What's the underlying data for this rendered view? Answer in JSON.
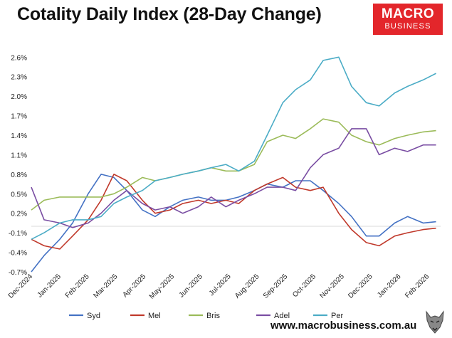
{
  "title": "Cotality Daily Index (28-Day Change)",
  "logo": {
    "top": "MACRO",
    "bottom": "BUSINESS",
    "color": "#e3262b"
  },
  "footer_url": "www.macrobusiness.com.au",
  "chart_data": {
    "type": "line",
    "title": "Cotality Daily Index (28-Day Change)",
    "y_ticks": [
      "-0.7%",
      "-0.4%",
      "-0.1%",
      "0.2%",
      "0.5%",
      "0.8%",
      "1.1%",
      "1.4%",
      "1.7%",
      "2.0%",
      "2.3%",
      "2.6%"
    ],
    "x_ticks": [
      "Dec-2024",
      "Jan-2025",
      "Feb-2025",
      "Mar-2025",
      "Apr-2025",
      "May-2025",
      "Jun-2025",
      "Jul-2025",
      "Aug-2025",
      "Sep-2025",
      "Oct-2025",
      "Nov-2025",
      "Dec-2025",
      "Jan-2026",
      "Feb-2026"
    ],
    "ylim": [
      -0.7,
      2.8
    ],
    "x_range": [
      "2024-12-01",
      "2026-02-20"
    ],
    "grid": false,
    "zero_line": true,
    "legend_position": "bottom",
    "x": [
      "2024-12-01",
      "2024-12-15",
      "2025-01-01",
      "2025-01-15",
      "2025-02-01",
      "2025-02-15",
      "2025-03-01",
      "2025-03-15",
      "2025-04-01",
      "2025-04-15",
      "2025-05-01",
      "2025-05-15",
      "2025-06-01",
      "2025-06-15",
      "2025-07-01",
      "2025-07-15",
      "2025-08-01",
      "2025-08-15",
      "2025-09-01",
      "2025-09-15",
      "2025-10-01",
      "2025-10-15",
      "2025-11-01",
      "2025-11-15",
      "2025-12-01",
      "2025-12-15",
      "2026-01-01",
      "2026-01-15",
      "2026-02-01",
      "2026-02-15"
    ],
    "series": [
      {
        "name": "Syd",
        "color": "#4472c4",
        "values": [
          -0.7,
          -0.45,
          -0.2,
          0.05,
          0.5,
          0.8,
          0.75,
          0.55,
          0.25,
          0.15,
          0.3,
          0.4,
          0.45,
          0.4,
          0.4,
          0.45,
          0.55,
          0.65,
          0.6,
          0.7,
          0.7,
          0.55,
          0.35,
          0.15,
          -0.15,
          -0.15,
          0.05,
          0.15,
          0.05,
          0.07
        ]
      },
      {
        "name": "Mel",
        "color": "#c0392b",
        "values": [
          -0.2,
          -0.3,
          -0.35,
          -0.15,
          0.1,
          0.4,
          0.8,
          0.7,
          0.4,
          0.2,
          0.25,
          0.35,
          0.4,
          0.35,
          0.4,
          0.35,
          0.55,
          0.65,
          0.75,
          0.6,
          0.55,
          0.6,
          0.2,
          -0.05,
          -0.25,
          -0.3,
          -0.15,
          -0.1,
          -0.05,
          -0.03
        ]
      },
      {
        "name": "Bris",
        "color": "#9bbb59",
        "values": [
          0.25,
          0.4,
          0.45,
          0.45,
          0.45,
          0.45,
          0.5,
          0.6,
          0.75,
          0.7,
          0.75,
          0.8,
          0.85,
          0.9,
          0.85,
          0.85,
          0.95,
          1.3,
          1.4,
          1.35,
          1.5,
          1.65,
          1.6,
          1.4,
          1.3,
          1.25,
          1.35,
          1.4,
          1.45,
          1.47
        ]
      },
      {
        "name": "Adel",
        "color": "#7a4ea3",
        "values": [
          0.6,
          0.1,
          0.05,
          -0.02,
          0.05,
          0.2,
          0.4,
          0.55,
          0.35,
          0.25,
          0.3,
          0.2,
          0.3,
          0.45,
          0.3,
          0.4,
          0.5,
          0.6,
          0.6,
          0.55,
          0.9,
          1.1,
          1.2,
          1.5,
          1.5,
          1.1,
          1.2,
          1.15,
          1.25,
          1.25
        ]
      },
      {
        "name": "Per",
        "color": "#4bacc6",
        "values": [
          -0.2,
          -0.1,
          0.05,
          0.1,
          0.1,
          0.15,
          0.35,
          0.45,
          0.55,
          0.7,
          0.75,
          0.8,
          0.85,
          0.9,
          0.95,
          0.85,
          1.0,
          1.4,
          1.9,
          2.1,
          2.25,
          2.55,
          2.6,
          2.15,
          1.9,
          1.85,
          2.05,
          2.15,
          2.25,
          2.35
        ]
      }
    ]
  }
}
